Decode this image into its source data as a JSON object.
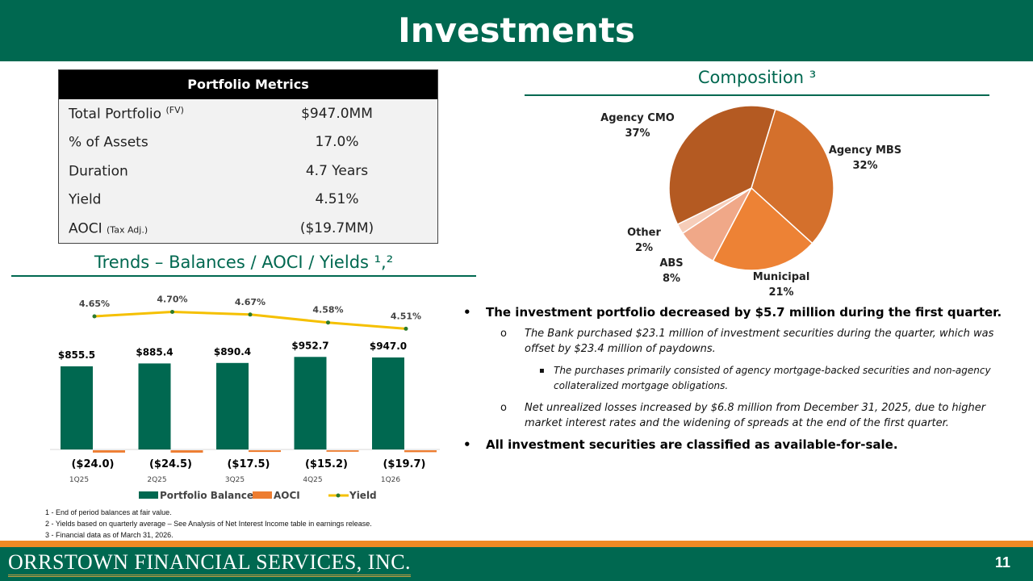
{
  "header": {
    "title": "Investments"
  },
  "metrics": {
    "title": "Portfolio Metrics",
    "rows": [
      {
        "label": "Total Portfolio",
        "sup": "(FV)",
        "small": "",
        "value": "$947.0MM"
      },
      {
        "label": "% of Assets",
        "sup": "",
        "small": "",
        "value": "17.0%"
      },
      {
        "label": "Duration",
        "sup": "",
        "small": "",
        "value": "4.7 Years"
      },
      {
        "label": "Yield",
        "sup": "",
        "small": "",
        "value": "4.51%"
      },
      {
        "label": "AOCI",
        "sup": "",
        "small": "(Tax Adj.)",
        "value": "($19.7MM)"
      }
    ]
  },
  "composition": {
    "title": "Composition ³"
  },
  "trends": {
    "title": "Trends – Balances / AOCI / Yields ¹,²"
  },
  "chart_data": [
    {
      "type": "bar+line",
      "categories": [
        "1Q25",
        "2Q25",
        "3Q25",
        "4Q25",
        "1Q26"
      ],
      "series": [
        {
          "name": "Portfolio Balance",
          "type": "bar",
          "color": "#006850",
          "values": [
            855.5,
            885.4,
            890.4,
            952.7,
            947.0
          ],
          "labels": [
            "$855.5",
            "$885.4",
            "$890.4",
            "$952.7",
            "$947.0"
          ]
        },
        {
          "name": "AOCI",
          "type": "bar",
          "color": "#ed7d31",
          "values": [
            -24.0,
            -24.5,
            -17.5,
            -15.2,
            -19.7
          ],
          "labels": [
            "($24.0)",
            "($24.5)",
            "($17.5)",
            "($15.2)",
            "($19.7)"
          ]
        },
        {
          "name": "Yield",
          "type": "line",
          "color": "#f5c000",
          "values": [
            4.65,
            4.7,
            4.67,
            4.58,
            4.51
          ],
          "labels": [
            "4.65%",
            "4.70%",
            "4.67%",
            "4.58%",
            "4.51%"
          ]
        }
      ],
      "legend": "bottom",
      "grid": false
    },
    {
      "type": "pie",
      "slices": [
        {
          "name": "Agency MBS",
          "value": 32,
          "label": "32%",
          "color": "#d4702c"
        },
        {
          "name": "Municipal",
          "value": 21,
          "label": "21%",
          "color": "#ed8235"
        },
        {
          "name": "ABS",
          "value": 8,
          "label": "8%",
          "color": "#f0a888"
        },
        {
          "name": "Other",
          "value": 2,
          "label": "2%",
          "color": "#f6cdb9"
        },
        {
          "name": "Agency CMO",
          "value": 37,
          "label": "37%",
          "color": "#b45a22"
        }
      ]
    }
  ],
  "bullets": [
    {
      "level": 1,
      "text": "The investment portfolio decreased by $5.7 million during the first quarter."
    },
    {
      "level": 2,
      "text": "The Bank purchased $23.1 million of investment securities during the quarter, which was offset by $23.4 million of paydowns."
    },
    {
      "level": 3,
      "text": "The purchases primarily consisted of agency mortgage-backed securities and non-agency collateralized mortgage obligations."
    },
    {
      "level": 2,
      "text": "Net unrealized losses increased by $6.8 million from December 31, 2025, due to higher market interest rates and the widening of spreads at the end of the first quarter."
    },
    {
      "level": 1,
      "text": "All investment securities are classified as available-for-sale."
    }
  ],
  "footnotes": [
    "1 - End of period balances at fair value.",
    "2 - Yields based on quarterly average – See Analysis of Net Interest Income table in earnings release.",
    "3 - Financial data as of March 31, 2026."
  ],
  "footer": {
    "logo": "ORRSTOWN FINANCIAL SERVICES, INC.",
    "page": "11"
  }
}
